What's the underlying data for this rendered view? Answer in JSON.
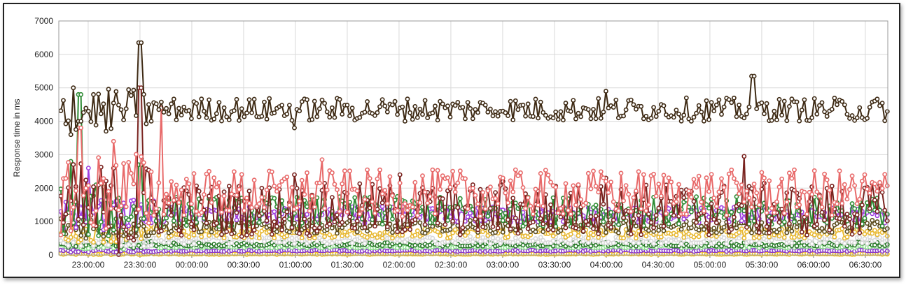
{
  "chart_data": {
    "type": "line",
    "title": "",
    "xlabel": "",
    "ylabel": "Response time in ms",
    "ylim": [
      0,
      7000
    ],
    "yticks": [
      "0",
      "1000",
      "2000",
      "3000",
      "4000",
      "5000",
      "6000",
      "7000"
    ],
    "x_start": "22:43:00",
    "x_end": "06:43:00",
    "xticks": [
      "23:00:00",
      "23:30:00",
      "00:00:00",
      "00:30:00",
      "01:00:00",
      "01:30:00",
      "02:00:00",
      "02:30:00",
      "03:00:00",
      "03:30:00",
      "04:00:00",
      "04:30:00",
      "05:00:00",
      "05:30:00",
      "06:00:00",
      "06:30:00"
    ],
    "grid": true,
    "legend": "none",
    "series": [
      {
        "color": "#3e2a14",
        "baseline": 4350,
        "noise": 350,
        "values_sampled": [
          {
            "x": "22:50:00",
            "y": 3600
          },
          {
            "x": "22:52:00",
            "y": 5000
          },
          {
            "x": "22:55:00",
            "y": 4000
          },
          {
            "x": "23:00:00",
            "y": 4300
          },
          {
            "x": "23:10:00",
            "y": 3700
          },
          {
            "x": "23:30:00",
            "y": 6350
          },
          {
            "x": "23:35:00",
            "y": 4500
          },
          {
            "x": "01:00:00",
            "y": 3800
          },
          {
            "x": "02:00:00",
            "y": 4400
          },
          {
            "x": "03:00:00",
            "y": 4300
          },
          {
            "x": "04:00:00",
            "y": 4900
          },
          {
            "x": "04:30:00",
            "y": 4300
          },
          {
            "x": "05:00:00",
            "y": 4050
          },
          {
            "x": "05:25:00",
            "y": 5350
          },
          {
            "x": "06:30:00",
            "y": 4050
          }
        ]
      },
      {
        "color": "#e86a6a",
        "baseline": 1850,
        "noise": 700,
        "values_sampled": [
          {
            "x": "22:55:00",
            "y": 3800
          },
          {
            "x": "23:15:00",
            "y": 3400
          },
          {
            "x": "23:42:00",
            "y": 4400
          },
          {
            "x": "01:15:00",
            "y": 2850
          },
          {
            "x": "02:00:00",
            "y": 2150
          },
          {
            "x": "03:00:00",
            "y": 2300
          },
          {
            "x": "04:00:00",
            "y": 2200
          },
          {
            "x": "05:00:00",
            "y": 1900
          },
          {
            "x": "06:30:00",
            "y": 2400
          }
        ]
      },
      {
        "color": "#7a2420",
        "baseline": 1350,
        "noise": 800,
        "values_sampled": [
          {
            "x": "23:30:00",
            "y": 5000
          },
          {
            "x": "01:00:00",
            "y": 2400
          },
          {
            "x": "02:00:00",
            "y": 2400
          },
          {
            "x": "03:00:00",
            "y": 2200
          },
          {
            "x": "04:00:00",
            "y": 2300
          },
          {
            "x": "05:20:00",
            "y": 2950
          }
        ]
      },
      {
        "color": "#2e8b34",
        "baseline": 1300,
        "noise": 450,
        "values_sampled": [
          {
            "x": "22:50:00",
            "y": 2800
          },
          {
            "x": "22:55:00",
            "y": 4800
          },
          {
            "x": "23:30:00",
            "y": 2700
          },
          {
            "x": "02:00:00",
            "y": 1450
          },
          {
            "x": "05:00:00",
            "y": 1400
          }
        ]
      },
      {
        "color": "#a040e0",
        "baseline": 1200,
        "noise": 250,
        "values_sampled": [
          {
            "x": "23:00:00",
            "y": 2600
          },
          {
            "x": "23:15:00",
            "y": 1500
          },
          {
            "x": "01:00:00",
            "y": 1200
          },
          {
            "x": "04:00:00",
            "y": 1250
          },
          {
            "x": "06:30:00",
            "y": 1200
          }
        ]
      },
      {
        "color": "#5a4a1c",
        "baseline": 850,
        "noise": 200,
        "values_sampled": []
      },
      {
        "color": "#e8b830",
        "baseline": 650,
        "noise": 150,
        "values_sampled": []
      },
      {
        "color": "#d8d8d8",
        "baseline": 450,
        "noise": 120,
        "values_sampled": []
      },
      {
        "color": "#2a7a2a",
        "baseline": 320,
        "noise": 60,
        "values_sampled": []
      },
      {
        "color": "#90e090",
        "baseline": 250,
        "noise": 40,
        "values_sampled": []
      },
      {
        "color": "#8a3ac8",
        "baseline": 130,
        "noise": 25,
        "values_sampled": []
      },
      {
        "color": "#f0c020",
        "baseline": 30,
        "noise": 15,
        "values_sampled": []
      }
    ]
  }
}
